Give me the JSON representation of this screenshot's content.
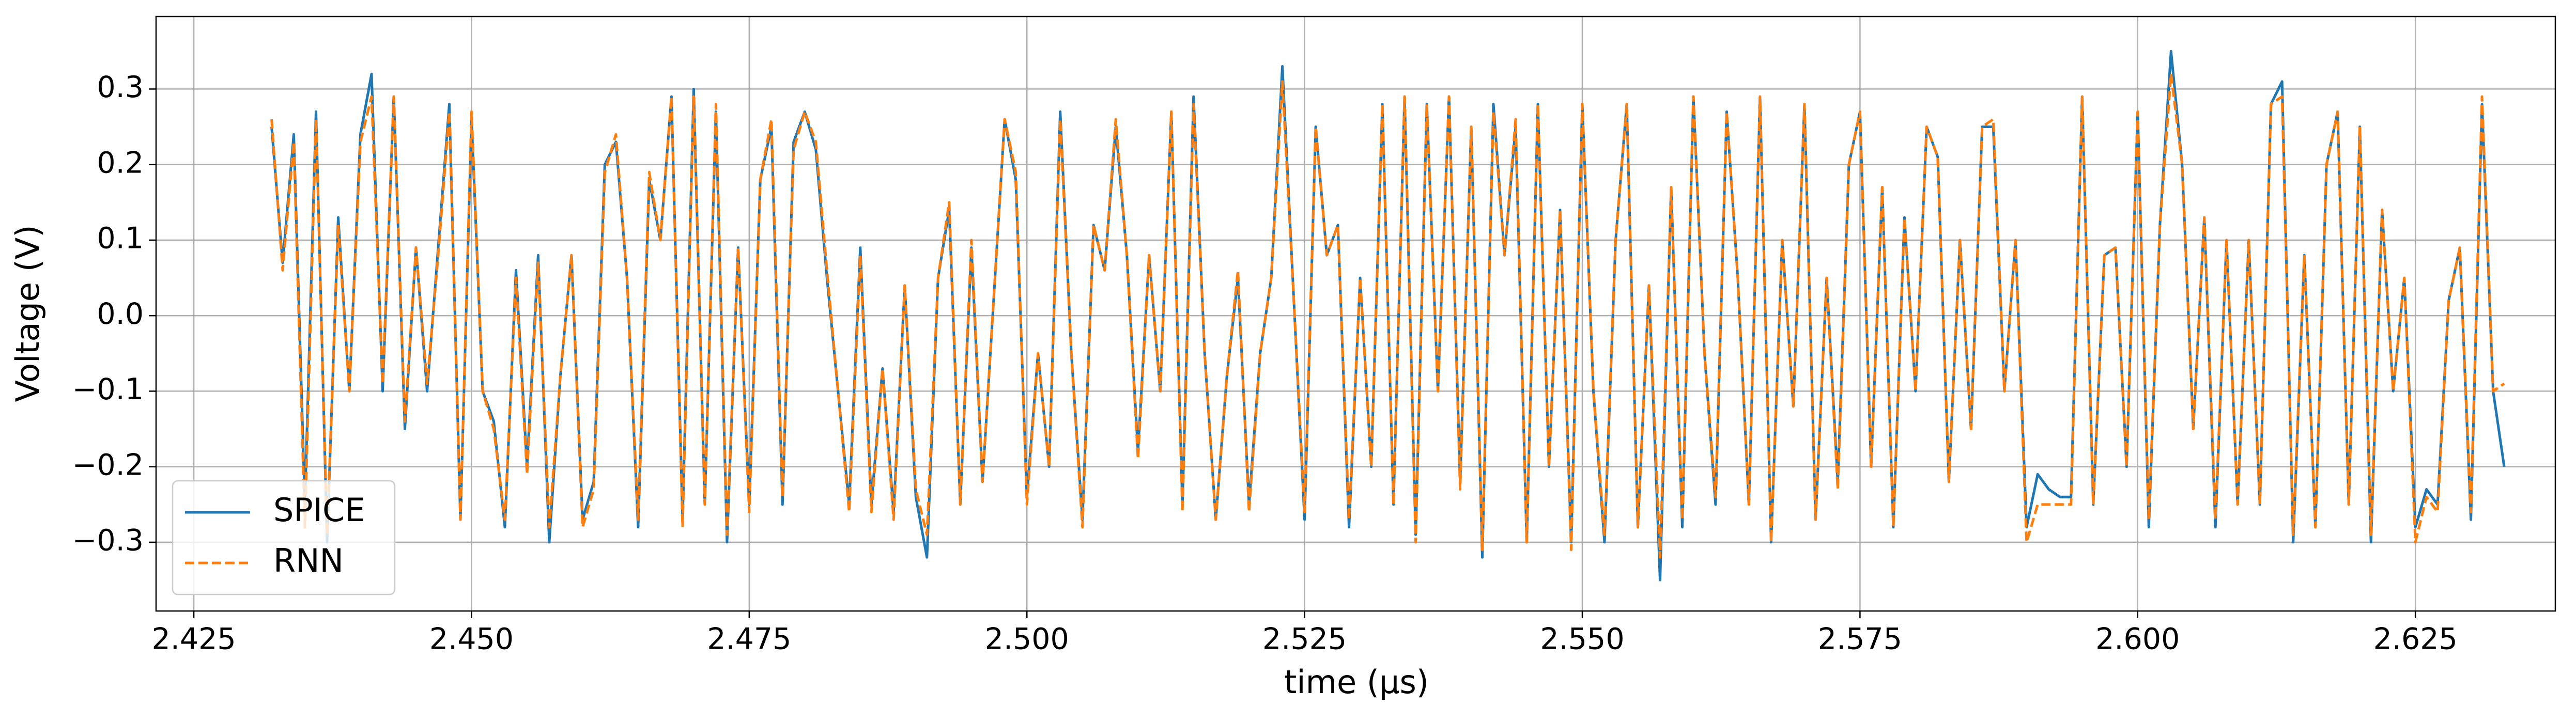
{
  "chart_data": {
    "type": "line",
    "xlabel": "time (μs)",
    "ylabel": "Voltage (V)",
    "x": [
      2.432,
      2.433,
      2.434,
      2.435,
      2.436,
      2.437,
      2.438,
      2.439,
      2.44,
      2.441,
      2.442,
      2.443,
      2.444,
      2.445,
      2.446,
      2.447,
      2.448,
      2.449,
      2.45,
      2.451,
      2.452,
      2.453,
      2.454,
      2.455,
      2.456,
      2.457,
      2.458,
      2.459,
      2.46,
      2.461,
      2.462,
      2.463,
      2.464,
      2.465,
      2.466,
      2.467,
      2.468,
      2.469,
      2.47,
      2.471,
      2.472,
      2.473,
      2.474,
      2.475,
      2.476,
      2.477,
      2.478,
      2.479,
      2.48,
      2.481,
      2.482,
      2.483,
      2.484,
      2.485,
      2.486,
      2.487,
      2.488,
      2.489,
      2.49,
      2.491,
      2.492,
      2.493,
      2.494,
      2.495,
      2.496,
      2.497,
      2.498,
      2.499,
      2.5,
      2.501,
      2.502,
      2.503,
      2.504,
      2.505,
      2.506,
      2.507,
      2.508,
      2.509,
      2.51,
      2.511,
      2.512,
      2.513,
      2.514,
      2.515,
      2.516,
      2.517,
      2.518,
      2.519,
      2.52,
      2.521,
      2.522,
      2.523,
      2.524,
      2.525,
      2.526,
      2.527,
      2.528,
      2.529,
      2.53,
      2.531,
      2.532,
      2.533,
      2.534,
      2.535,
      2.536,
      2.537,
      2.538,
      2.539,
      2.54,
      2.541,
      2.542,
      2.543,
      2.544,
      2.545,
      2.546,
      2.547,
      2.548,
      2.549,
      2.55,
      2.551,
      2.552,
      2.553,
      2.554,
      2.555,
      2.556,
      2.557,
      2.558,
      2.559,
      2.56,
      2.561,
      2.562,
      2.563,
      2.564,
      2.565,
      2.566,
      2.567,
      2.568,
      2.569,
      2.57,
      2.571,
      2.572,
      2.573,
      2.574,
      2.575,
      2.576,
      2.577,
      2.578,
      2.579,
      2.58,
      2.581,
      2.582,
      2.583,
      2.584,
      2.585,
      2.586,
      2.587,
      2.588,
      2.589,
      2.59,
      2.591,
      2.592,
      2.593,
      2.594,
      2.595,
      2.596,
      2.597,
      2.598,
      2.599,
      2.6,
      2.601,
      2.602,
      2.603,
      2.604,
      2.605,
      2.606,
      2.607,
      2.608,
      2.609,
      2.61,
      2.611,
      2.612,
      2.613,
      2.614,
      2.615,
      2.616,
      2.617,
      2.618,
      2.619,
      2.62,
      2.621,
      2.622,
      2.623,
      2.624,
      2.625,
      2.626,
      2.627,
      2.628,
      2.629,
      2.63,
      2.631,
      2.632,
      2.633
    ],
    "series": [
      {
        "name": "SPICE",
        "color": "#1f77b4",
        "linestyle": "solid",
        "values": [
          0.25,
          0.07,
          0.24,
          -0.25,
          0.27,
          -0.3,
          0.13,
          -0.1,
          0.24,
          0.32,
          -0.1,
          0.29,
          -0.15,
          0.09,
          -0.1,
          0.09,
          0.28,
          -0.27,
          0.26,
          -0.1,
          -0.14,
          -0.28,
          0.06,
          -0.2,
          0.08,
          -0.3,
          -0.08,
          0.08,
          -0.27,
          -0.22,
          0.2,
          0.23,
          0.05,
          -0.28,
          0.18,
          0.1,
          0.29,
          -0.27,
          0.3,
          -0.25,
          0.27,
          -0.3,
          0.09,
          -0.25,
          0.18,
          0.25,
          -0.25,
          0.23,
          0.27,
          0.22,
          0.05,
          -0.1,
          -0.25,
          0.09,
          -0.25,
          -0.07,
          -0.26,
          0.04,
          -0.24,
          -0.32,
          0.05,
          0.14,
          -0.25,
          0.09,
          -0.22,
          0.02,
          0.26,
          0.18,
          -0.24,
          -0.05,
          -0.2,
          0.27,
          -0.05,
          -0.27,
          0.12,
          0.06,
          0.25,
          0.08,
          -0.18,
          0.08,
          -0.1,
          0.27,
          -0.25,
          0.29,
          -0.05,
          -0.27,
          -0.08,
          0.05,
          -0.25,
          -0.05,
          0.05,
          0.33,
          0.03,
          -0.27,
          0.25,
          0.08,
          0.12,
          -0.28,
          0.05,
          -0.2,
          0.28,
          -0.25,
          0.29,
          -0.29,
          0.28,
          -0.1,
          0.29,
          -0.22,
          0.25,
          -0.32,
          0.28,
          0.08,
          0.25,
          -0.3,
          0.28,
          -0.2,
          0.14,
          -0.3,
          0.28,
          -0.1,
          -0.3,
          0.1,
          0.28,
          -0.28,
          0.04,
          -0.35,
          0.17,
          -0.28,
          0.29,
          -0.05,
          -0.25,
          0.27,
          0.05,
          -0.25,
          0.29,
          -0.3,
          0.1,
          -0.12,
          0.28,
          -0.27,
          0.05,
          -0.22,
          0.2,
          0.27,
          -0.2,
          0.17,
          -0.28,
          0.13,
          -0.1,
          0.25,
          0.21,
          -0.22,
          0.1,
          -0.15,
          0.25,
          0.25,
          -0.1,
          0.1,
          -0.28,
          -0.21,
          -0.23,
          -0.24,
          -0.24,
          0.29,
          -0.25,
          0.08,
          0.09,
          -0.2,
          0.27,
          -0.28,
          0.12,
          0.35,
          0.2,
          -0.15,
          0.13,
          -0.28,
          0.1,
          -0.25,
          0.1,
          -0.25,
          0.28,
          0.31,
          -0.3,
          0.08,
          -0.28,
          0.2,
          0.27,
          -0.25,
          0.25,
          -0.3,
          0.14,
          -0.1,
          0.05,
          -0.28,
          -0.23,
          -0.25,
          0.02,
          0.09,
          -0.27,
          0.28,
          -0.1,
          -0.2
        ]
      },
      {
        "name": "RNN",
        "color": "#ff7f0e",
        "linestyle": "dashed",
        "values": [
          0.26,
          0.06,
          0.23,
          -0.28,
          0.26,
          -0.29,
          0.12,
          -0.1,
          0.23,
          0.29,
          -0.09,
          0.29,
          -0.14,
          0.09,
          -0.09,
          0.08,
          0.27,
          -0.27,
          0.27,
          -0.1,
          -0.15,
          -0.27,
          0.05,
          -0.21,
          0.07,
          -0.28,
          -0.08,
          0.08,
          -0.28,
          -0.23,
          0.19,
          0.24,
          0.05,
          -0.27,
          0.19,
          0.1,
          0.29,
          -0.28,
          0.29,
          -0.25,
          0.28,
          -0.29,
          0.09,
          -0.26,
          0.18,
          0.26,
          -0.24,
          0.22,
          0.27,
          0.23,
          0.06,
          -0.1,
          -0.26,
          0.08,
          -0.26,
          -0.07,
          -0.27,
          0.04,
          -0.23,
          -0.29,
          0.05,
          0.15,
          -0.25,
          0.1,
          -0.22,
          0.02,
          0.26,
          0.19,
          -0.25,
          -0.05,
          -0.2,
          0.26,
          -0.05,
          -0.28,
          0.12,
          0.06,
          0.26,
          0.08,
          -0.19,
          0.08,
          -0.1,
          0.27,
          -0.26,
          0.28,
          -0.05,
          -0.27,
          -0.08,
          0.06,
          -0.26,
          -0.05,
          0.05,
          0.31,
          0.03,
          -0.26,
          0.25,
          0.08,
          0.12,
          -0.27,
          0.05,
          -0.2,
          0.28,
          -0.25,
          0.29,
          -0.3,
          0.28,
          -0.1,
          0.29,
          -0.23,
          0.25,
          -0.31,
          0.27,
          0.08,
          0.26,
          -0.3,
          0.28,
          -0.2,
          0.14,
          -0.31,
          0.28,
          -0.1,
          -0.29,
          0.1,
          0.28,
          -0.28,
          0.04,
          -0.32,
          0.17,
          -0.27,
          0.29,
          -0.05,
          -0.24,
          0.27,
          0.05,
          -0.25,
          0.29,
          -0.3,
          0.1,
          -0.12,
          0.28,
          -0.27,
          0.05,
          -0.23,
          0.2,
          0.27,
          -0.2,
          0.17,
          -0.28,
          0.13,
          -0.1,
          0.25,
          0.21,
          -0.22,
          0.1,
          -0.15,
          0.25,
          0.26,
          -0.1,
          0.1,
          -0.3,
          -0.25,
          -0.25,
          -0.25,
          -0.25,
          0.29,
          -0.25,
          0.08,
          0.09,
          -0.2,
          0.27,
          -0.27,
          0.12,
          0.32,
          0.2,
          -0.15,
          0.13,
          -0.27,
          0.1,
          -0.25,
          0.1,
          -0.25,
          0.28,
          0.29,
          -0.29,
          0.08,
          -0.28,
          0.2,
          0.27,
          -0.25,
          0.25,
          -0.29,
          0.14,
          -0.1,
          0.05,
          -0.3,
          -0.24,
          -0.26,
          0.02,
          0.09,
          -0.26,
          0.29,
          -0.1,
          -0.09
        ]
      }
    ],
    "xlim": [
      2.4216,
      2.6376
    ],
    "xticks": [
      2.425,
      {
        "value": 2.45,
        "label": "2.450"
      },
      2.475,
      {
        "value": 2.5,
        "label": "2.500"
      },
      2.525,
      {
        "value": 2.55,
        "label": "2.550"
      },
      2.575,
      {
        "value": 2.6,
        "label": "2.600"
      },
      2.625
    ],
    "ylim": [
      -0.391,
      0.396
    ],
    "yticks": [
      {
        "value": -0.3,
        "label": "−0.3"
      },
      {
        "value": -0.2,
        "label": "−0.2"
      },
      {
        "value": -0.1,
        "label": "−0.1"
      },
      {
        "value": 0,
        "label": "0.0"
      },
      0.1,
      0.2,
      0.3
    ],
    "grid": true,
    "legend": "lower left"
  }
}
